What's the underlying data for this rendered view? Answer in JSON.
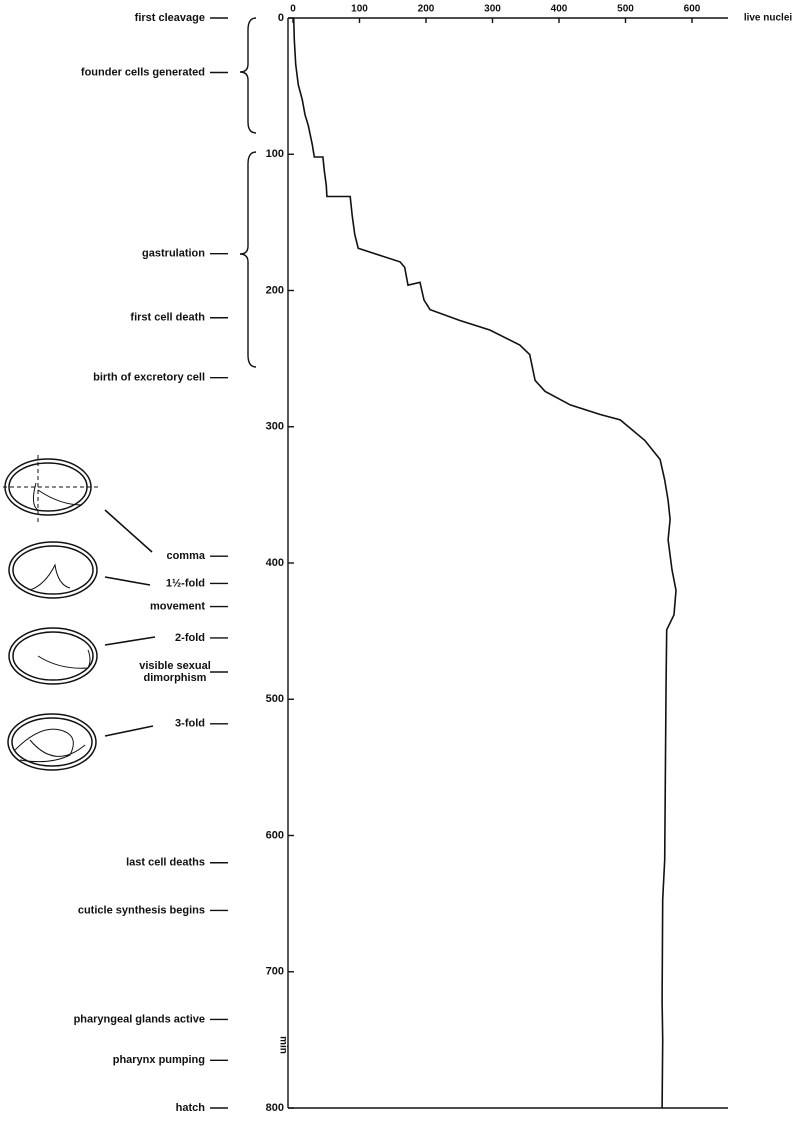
{
  "chart_data": {
    "type": "line",
    "x_label": "min",
    "y_label": "live nuclei",
    "xlim": [
      0,
      800
    ],
    "xticks": [
      0,
      100,
      200,
      300,
      400,
      500,
      600,
      700,
      800
    ],
    "ylim": [
      0,
      655
    ],
    "yticks": [
      0,
      100,
      200,
      300,
      400,
      500,
      600
    ],
    "color": "#111111",
    "x": [
      0,
      16,
      34,
      49,
      60,
      71,
      79,
      93,
      102,
      102,
      112,
      123,
      131,
      131,
      145,
      159,
      169,
      179,
      183,
      196,
      194,
      207,
      214,
      222,
      229,
      240,
      247,
      266,
      274,
      284,
      291,
      295,
      310,
      324,
      339,
      354,
      368,
      383,
      405,
      420,
      438,
      449,
      486,
      618,
      647,
      721,
      750,
      800
    ],
    "values": [
      1,
      2,
      4,
      8,
      14,
      18,
      23,
      29,
      32,
      45,
      47,
      50,
      51,
      86,
      89,
      93,
      98,
      161,
      168,
      173,
      191,
      197,
      206,
      251,
      296,
      341,
      356,
      364,
      379,
      417,
      462,
      492,
      529,
      552,
      559,
      564,
      567,
      564,
      570,
      576,
      573,
      562,
      561,
      559,
      556,
      555,
      556,
      555
    ],
    "annotations": [
      {
        "text": [
          "first cleavage"
        ],
        "at": 0
      },
      {
        "text": [
          "founder cells generated"
        ],
        "at": 40
      },
      {
        "text": [
          "gastrulation"
        ],
        "at": 173
      },
      {
        "text": [
          "first cell death"
        ],
        "at": 220
      },
      {
        "text": [
          "birth of excretory cell"
        ],
        "at": 264
      },
      {
        "text": [
          "comma"
        ],
        "at": 395
      },
      {
        "text": [
          "1½-fold"
        ],
        "at": 415
      },
      {
        "text": [
          "movement"
        ],
        "at": 432
      },
      {
        "text": [
          "2-fold"
        ],
        "at": 455
      },
      {
        "text": [
          "visible sexual",
          "dimorphism"
        ],
        "at": 480
      },
      {
        "text": [
          "3-fold"
        ],
        "at": 518
      },
      {
        "text": [
          "last cell deaths"
        ],
        "at": 620
      },
      {
        "text": [
          "cuticle synthesis begins"
        ],
        "at": 655
      },
      {
        "text": [
          "pharyngeal glands active"
        ],
        "at": 735
      },
      {
        "text": [
          "pharynx pumping"
        ],
        "at": 765
      },
      {
        "text": [
          "hatch"
        ],
        "at": 800
      }
    ]
  }
}
